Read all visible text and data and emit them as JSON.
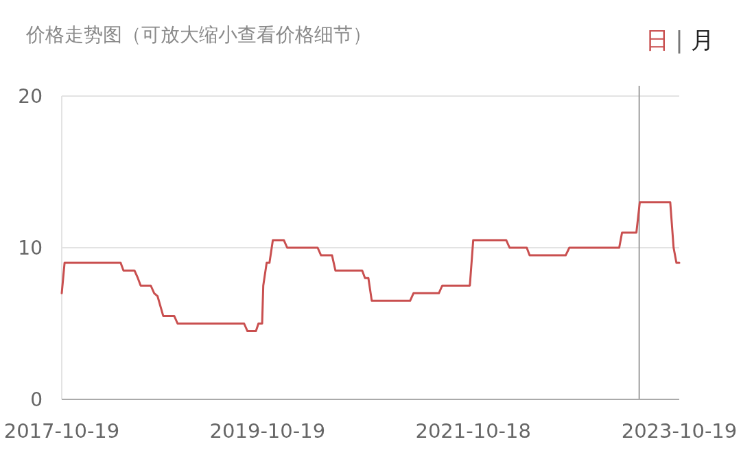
{
  "chart_data": {
    "type": "line",
    "title": "价格走势图（可放大缩小查看价格细节）",
    "annotations": [
      "日",
      "|",
      "月"
    ],
    "x": [
      "2017-10-19",
      "2017-10-29",
      "2018-05-16",
      "2018-05-26",
      "2018-07-04",
      "2018-07-16",
      "2018-07-26",
      "2018-08-31",
      "2018-09-12",
      "2018-09-24",
      "2018-10-14",
      "2018-11-22",
      "2018-12-04",
      "2019-07-28",
      "2019-08-09",
      "2019-09-08",
      "2019-09-17",
      "2019-09-30",
      "2019-10-04",
      "2019-10-16",
      "2019-10-26",
      "2019-11-07",
      "2019-12-16",
      "2019-12-28",
      "2020-04-14",
      "2020-04-26",
      "2020-06-04",
      "2020-06-16",
      "2020-09-19",
      "2020-09-29",
      "2020-10-11",
      "2020-10-23",
      "2021-03-08",
      "2021-03-20",
      "2021-06-18",
      "2021-06-30",
      "2021-10-06",
      "2021-10-18",
      "2022-02-12",
      "2022-02-24",
      "2022-04-26",
      "2022-05-06",
      "2022-09-11",
      "2022-09-24",
      "2023-03-20",
      "2023-03-30",
      "2023-05-20",
      "2023-06-01",
      "2023-09-17",
      "2023-09-29",
      "2023-10-09",
      "2023-10-19"
    ],
    "series": [
      {
        "color": "#c94f4f",
        "values": [
          7.0,
          9.0,
          9.0,
          8.5,
          8.5,
          8.0,
          7.5,
          7.5,
          7.0,
          6.8,
          5.5,
          5.5,
          5.0,
          5.0,
          4.5,
          4.5,
          5.0,
          5.0,
          7.5,
          9.0,
          9.0,
          10.5,
          10.5,
          10.0,
          10.0,
          9.5,
          9.5,
          8.5,
          8.5,
          8.0,
          8.0,
          6.5,
          6.5,
          7.0,
          7.0,
          7.5,
          7.5,
          10.5,
          10.5,
          10.0,
          10.0,
          9.5,
          9.5,
          10.0,
          10.0,
          11.0,
          11.0,
          13.0,
          13.0,
          10.0,
          9.0,
          9.0
        ]
      }
    ],
    "xlim": [
      "2017-10-19",
      "2023-10-19"
    ],
    "xticks": [
      "2017-10-19",
      "2019-10-19",
      "2021-10-18",
      "2023-10-19"
    ],
    "ylim": [
      0,
      20
    ],
    "yticks": [
      0,
      10,
      20
    ],
    "ref_lines": [
      {
        "axis": "x",
        "value": "2023-05-30",
        "color": "#9e9e9e"
      }
    ],
    "grid": "y",
    "marker": "none",
    "line_style": "solid"
  }
}
